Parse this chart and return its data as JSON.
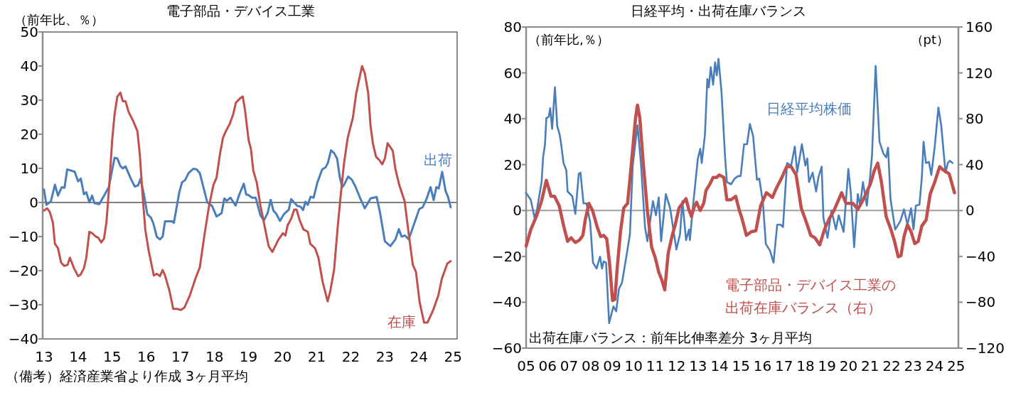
{
  "chart_data": [
    {
      "type": "line",
      "title": "電子部品・デバイス工業",
      "ylabel": "（前年比、％）",
      "xlim": [
        12.96,
        25.12
      ],
      "xticks": [
        13,
        14,
        15,
        16,
        17,
        18,
        19,
        20,
        21,
        22,
        23,
        24,
        25
      ],
      "ylim": [
        -40,
        50
      ],
      "yticks": [
        -40,
        -30,
        -20,
        -10,
        0,
        10,
        20,
        30,
        40,
        50
      ],
      "grid": false,
      "legend": false,
      "marker": "none",
      "line_style": "solid",
      "ref_lines": [
        {
          "axis": "y",
          "value": 0,
          "color": "#808080"
        }
      ],
      "annotations": [
        "（備考）経済産業省より作成 3ヶ月平均"
      ],
      "series": [
        {
          "name": "出荷",
          "color": "#4a7ebb",
          "x": [
            13.0,
            13.07,
            13.2,
            13.32,
            13.41,
            13.52,
            13.6,
            13.68,
            13.9,
            14.0,
            14.08,
            14.17,
            14.24,
            14.33,
            14.41,
            14.48,
            14.62,
            14.76,
            14.9,
            15.07,
            15.15,
            15.24,
            15.31,
            15.39,
            15.55,
            15.66,
            15.76,
            15.83,
            15.93,
            16.03,
            16.14,
            16.21,
            16.31,
            16.4,
            16.48,
            16.55,
            16.76,
            16.81,
            16.97,
            17.05,
            17.14,
            17.24,
            17.38,
            17.48,
            17.57,
            17.79,
            17.93,
            18.06,
            18.21,
            18.29,
            18.36,
            18.47,
            18.62,
            18.72,
            18.86,
            18.93,
            19.01,
            19.1,
            19.21,
            19.35,
            19.45,
            19.56,
            19.65,
            19.73,
            19.82,
            19.92,
            20.04,
            20.18,
            20.25,
            20.43,
            20.52,
            20.6,
            20.67,
            20.74,
            20.82,
            20.91,
            21.02,
            21.16,
            21.26,
            21.33,
            21.42,
            21.51,
            21.6,
            21.68,
            21.75,
            21.82,
            21.92,
            22.03,
            22.13,
            22.27,
            22.41,
            22.58,
            22.76,
            22.86,
            23.0,
            23.16,
            23.31,
            23.41,
            23.49,
            23.59,
            23.7,
            23.87,
            24.01,
            24.11,
            24.22,
            24.34,
            24.43,
            24.51,
            24.58,
            24.68,
            24.78,
            24.85,
            24.93
          ],
          "values": [
            3.8,
            -0.7,
            0.3,
            5.2,
            2,
            4.5,
            4.3,
            9.7,
            9,
            6.2,
            7,
            2.4,
            3,
            0,
            2,
            -0.2,
            -0.5,
            2,
            4.5,
            13.1,
            12.9,
            10.7,
            10,
            10.6,
            6.9,
            4.7,
            5,
            6.9,
            2.4,
            -3.4,
            -4.5,
            -6.2,
            -10.1,
            -10.8,
            -10,
            -5.5,
            -5.5,
            -6,
            3.1,
            5.9,
            6.6,
            8.6,
            9.9,
            9.7,
            8.6,
            0,
            -1,
            -4.1,
            -3.1,
            1.2,
            0.5,
            1.4,
            -0.9,
            2.1,
            5.5,
            2.4,
            2.1,
            1.4,
            1.4,
            -3.8,
            -5.3,
            -3.1,
            0.8,
            -2.4,
            -3.4,
            -5.4,
            -3.4,
            -2.1,
            1,
            -1,
            -1.2,
            -2.2,
            0.2,
            -0.7,
            1.7,
            1.4,
            5.9,
            9.7,
            10.3,
            11.7,
            15.3,
            14.5,
            12.8,
            7.2,
            4.5,
            5.5,
            7.6,
            6.7,
            4.8,
            1.4,
            -1.7,
            1.2,
            1.6,
            -3.1,
            -11.4,
            -12.8,
            -10.8,
            -7.8,
            -10,
            -9.7,
            -10.8,
            -5.9,
            -1.9,
            -1.4,
            1,
            4.5,
            0.7,
            4.5,
            4.1,
            9,
            3.4,
            1.7,
            -1.4
          ]
        },
        {
          "name": "在庫",
          "color": "#c0504d",
          "x": [
            13.0,
            13.09,
            13.17,
            13.26,
            13.32,
            13.41,
            13.5,
            13.59,
            13.69,
            13.76,
            13.88,
            14.0,
            14.07,
            14.17,
            14.24,
            14.33,
            14.41,
            14.52,
            14.59,
            14.68,
            14.76,
            14.83,
            14.91,
            15.0,
            15.07,
            15.15,
            15.24,
            15.31,
            15.39,
            15.48,
            15.62,
            15.74,
            15.81,
            15.9,
            15.97,
            16.07,
            16.22,
            16.31,
            16.4,
            16.48,
            16.55,
            16.68,
            16.79,
            16.9,
            17.02,
            17.12,
            17.28,
            17.45,
            17.57,
            17.71,
            17.83,
            17.97,
            18.06,
            18.16,
            18.25,
            18.34,
            18.45,
            18.55,
            18.63,
            18.77,
            18.83,
            18.9,
            19.0,
            19.07,
            19.14,
            19.24,
            19.35,
            19.49,
            19.59,
            19.7,
            19.87,
            20.01,
            20.08,
            20.15,
            20.25,
            20.34,
            20.41,
            20.5,
            20.61,
            20.74,
            20.81,
            20.95,
            21.05,
            21.17,
            21.32,
            21.4,
            21.51,
            21.61,
            21.7,
            21.8,
            21.91,
            22.06,
            22.16,
            22.33,
            22.41,
            22.51,
            22.58,
            22.65,
            22.74,
            22.84,
            22.92,
            23.0,
            23.08,
            23.23,
            23.31,
            23.42,
            23.58,
            23.7,
            23.82,
            23.91,
            24.02,
            24.15,
            24.25,
            24.41,
            24.57,
            24.67,
            24.83,
            24.93
          ],
          "values": [
            -2.4,
            -1.7,
            -2.8,
            -5.9,
            -12.1,
            -13.4,
            -17.6,
            -18.6,
            -18.3,
            -16.2,
            -19.3,
            -21.6,
            -21.2,
            -19.3,
            -16.2,
            -8.6,
            -9,
            -10,
            -10.3,
            -11.7,
            -10.6,
            -5.9,
            4.5,
            18.3,
            25.9,
            31,
            32.2,
            29.7,
            29.7,
            26.6,
            23.8,
            20.9,
            14.1,
            1,
            -7.9,
            -14.1,
            -21.4,
            -20.9,
            -21.6,
            -19.8,
            -21.4,
            -25.9,
            -31.2,
            -31.2,
            -31.5,
            -30.8,
            -27.2,
            -22.1,
            -19,
            -9.3,
            -1.7,
            5.2,
            7.2,
            14.1,
            19,
            21,
            23.1,
            25.9,
            29.3,
            30.7,
            31.1,
            26.8,
            18.4,
            15.7,
            9.3,
            5.9,
            -1,
            -7.9,
            -12.8,
            -14.5,
            -11,
            -9,
            -9.7,
            -6.6,
            -4.8,
            -2.1,
            -2.1,
            -5.2,
            -7.9,
            -8.6,
            -12.1,
            -13.4,
            -16.2,
            -23.1,
            -29,
            -25.9,
            -19.7,
            -7.9,
            1.7,
            11.4,
            19,
            24.8,
            32.1,
            40,
            37.9,
            32.1,
            22.4,
            17.2,
            13.4,
            12.4,
            11.2,
            12.9,
            17.4,
            15.2,
            9.7,
            5.2,
            0.3,
            -9.3,
            -18.3,
            -20.3,
            -29.3,
            -35.2,
            -35.2,
            -31.7,
            -27.2,
            -22.4,
            -17.9,
            -17.2
          ]
        }
      ]
    },
    {
      "type": "line",
      "title": "日経平均・出荷在庫バランス",
      "ylabel": "（前年比,％）",
      "y2label": "（pt）",
      "xlim": [
        5,
        25.11
      ],
      "xticks": [
        {
          "value": 5,
          "label": "05"
        },
        {
          "value": 6,
          "label": "06"
        },
        {
          "value": 7,
          "label": "07"
        },
        {
          "value": 8,
          "label": "08"
        },
        {
          "value": 9,
          "label": "09"
        },
        10,
        11,
        12,
        13,
        14,
        15,
        16,
        17,
        18,
        19,
        20,
        21,
        22,
        23,
        24,
        25
      ],
      "ylim": [
        -60,
        80
      ],
      "yticks": [
        -60,
        -40,
        -20,
        0,
        20,
        40,
        60,
        80
      ],
      "y2lim": [
        -120,
        160
      ],
      "y2ticks": [
        -120,
        -80,
        -40,
        0,
        40,
        80,
        120,
        160
      ],
      "grid": false,
      "legend": false,
      "marker": "none",
      "line_style": "solid",
      "ref_lines": [
        {
          "axis": "y",
          "value": 0,
          "color": "#a0a0a0"
        }
      ],
      "annotations": [
        "出荷在庫バランス：前年比伸率差分 3ヶ月平均"
      ],
      "series": [
        {
          "name": "日経平均株価",
          "color": "#4a7ebb",
          "x": [
            5.0,
            5.22,
            5.39,
            5.5,
            5.61,
            5.72,
            5.79,
            5.88,
            5.94,
            6.05,
            6.12,
            6.21,
            6.34,
            6.45,
            6.56,
            6.63,
            6.74,
            6.87,
            6.93,
            7.15,
            7.29,
            7.45,
            7.53,
            7.67,
            7.81,
            7.98,
            8.11,
            8.28,
            8.44,
            8.53,
            8.61,
            8.72,
            8.86,
            9.06,
            9.19,
            9.32,
            9.46,
            9.68,
            9.83,
            9.96,
            10.18,
            10.34,
            10.53,
            10.64,
            10.9,
            11.04,
            11.17,
            11.28,
            11.5,
            11.7,
            11.85,
            11.99,
            12.16,
            12.27,
            12.44,
            12.58,
            12.62,
            12.77,
            12.99,
            13.1,
            13.17,
            13.32,
            13.43,
            13.5,
            13.59,
            13.7,
            13.79,
            13.87,
            13.95,
            14.09,
            14.26,
            14.34,
            14.53,
            14.7,
            14.86,
            14.98,
            15.14,
            15.28,
            15.41,
            15.56,
            15.74,
            15.85,
            16.02,
            16.15,
            16.35,
            16.51,
            16.68,
            16.84,
            16.95,
            17.14,
            17.33,
            17.5,
            17.61,
            17.83,
            17.99,
            18.08,
            18.16,
            18.33,
            18.49,
            18.6,
            18.75,
            18.83,
            19.02,
            19.21,
            19.41,
            19.54,
            19.77,
            19.99,
            20.1,
            20.26,
            20.43,
            20.54,
            20.67,
            20.85,
            21.0,
            21.09,
            21.26,
            21.44,
            21.62,
            21.75,
            21.84,
            21.95,
            22.17,
            22.41,
            22.58,
            22.74,
            22.91,
            23.02,
            23.13,
            23.3,
            23.41,
            23.49,
            23.6,
            23.74,
            23.85,
            24.01,
            24.18,
            24.31,
            24.51,
            24.62,
            24.71,
            24.84
          ],
          "values": [
            7.7,
            4.6,
            -3.1,
            0,
            6.2,
            12.4,
            23.2,
            28.9,
            40.3,
            40.8,
            44.6,
            35.6,
            53.7,
            36.7,
            33.1,
            28.9,
            20.7,
            17.6,
            8.3,
            6.2,
            -1.5,
            16,
            16.5,
            3.1,
            3.1,
            -5.2,
            -22.7,
            -25.3,
            -20.1,
            -25.3,
            -22.2,
            -22.7,
            -49.1,
            -41.8,
            -43.9,
            -34.1,
            -31.5,
            -19.1,
            -10.3,
            19.6,
            37.2,
            20.7,
            -7.2,
            -13.4,
            4.1,
            -2.1,
            5.7,
            -13.4,
            7.2,
            1,
            -8.3,
            -17,
            -10.3,
            4.1,
            -12.9,
            -8.3,
            -12.9,
            2.6,
            22.7,
            26.9,
            20.7,
            33.1,
            57.3,
            53.7,
            62.5,
            54.8,
            64.6,
            58.9,
            66.1,
            51.7,
            22.7,
            12.4,
            11.4,
            13.9,
            15,
            15,
            28.9,
            28.9,
            37.7,
            32.5,
            13.4,
            13.9,
            3.1,
            -14.5,
            -17.6,
            -22.7,
            -6.2,
            -6.2,
            -7.2,
            20.7,
            19.6,
            27.9,
            16.5,
            28.9,
            19.6,
            22.7,
            12.4,
            16.5,
            8.3,
            14.5,
            19.1,
            -3.1,
            -11.9,
            0,
            -8.3,
            -2.1,
            -9.3,
            18.1,
            8.3,
            -16,
            7.2,
            2.1,
            12.4,
            2.1,
            14.5,
            23.8,
            63,
            30,
            24.8,
            23.2,
            27.4,
            5.2,
            -8.3,
            -4.6,
            0.5,
            -6.2,
            1,
            -8.3,
            2.1,
            2.6,
            14.5,
            30,
            20.7,
            21.2,
            15.5,
            27.9,
            44.9,
            37.2,
            16.5,
            20.7,
            21.7,
            20.7
          ]
        },
        {
          "name": "電子部品・デバイス工業の出荷在庫バランス（右）",
          "color": "#c0504d",
          "axis": "y2",
          "x": [
            5.0,
            5.22,
            5.5,
            5.72,
            5.94,
            6.16,
            6.32,
            6.54,
            6.76,
            6.93,
            7.09,
            7.29,
            7.48,
            7.64,
            7.75,
            7.92,
            8.09,
            8.31,
            8.47,
            8.61,
            8.75,
            8.88,
            9.02,
            9.13,
            9.24,
            9.39,
            9.54,
            9.72,
            9.85,
            9.98,
            10.09,
            10.18,
            10.29,
            10.45,
            10.64,
            10.84,
            11.01,
            11.17,
            11.3,
            11.45,
            11.61,
            11.81,
            11.94,
            12.11,
            12.27,
            12.44,
            12.55,
            12.69,
            12.82,
            12.93,
            13.1,
            13.26,
            13.37,
            13.54,
            13.7,
            13.87,
            13.98,
            14.2,
            14.34,
            14.53,
            14.75,
            14.92,
            15.03,
            15.25,
            15.47,
            15.69,
            15.91,
            16.18,
            16.46,
            16.62,
            16.9,
            17.12,
            17.33,
            17.56,
            17.8,
            18.06,
            18.24,
            18.44,
            18.66,
            18.88,
            19.1,
            19.32,
            19.68,
            19.88,
            20.21,
            20.43,
            20.62,
            20.81,
            21.03,
            21.2,
            21.36,
            21.53,
            21.75,
            21.97,
            22.14,
            22.31,
            22.44,
            22.58,
            22.74,
            22.91,
            23.08,
            23.24,
            23.41,
            23.61,
            23.8,
            24.01,
            24.24,
            24.42,
            24.68,
            24.93
          ],
          "values": [
            -31,
            -16.5,
            -4.1,
            8.3,
            26.4,
            12.4,
            12.4,
            4.1,
            -14.5,
            -26.9,
            -23.8,
            -27.9,
            -25.8,
            -21.7,
            -8.3,
            6.2,
            0,
            -14.5,
            -22.7,
            -21.7,
            -24.8,
            -45.5,
            -78.5,
            -77.5,
            -49.6,
            -18.6,
            2.1,
            6.2,
            31,
            57.9,
            80.6,
            91.9,
            80.6,
            41.3,
            0,
            -32,
            -41.3,
            -53.7,
            -59.9,
            -69.2,
            -37.2,
            -20.7,
            -12.4,
            2.1,
            6.2,
            10.3,
            2.1,
            -5.2,
            3.1,
            7.2,
            0,
            6.2,
            17.6,
            22.7,
            28.9,
            28.9,
            31,
            28.9,
            9.3,
            9.3,
            12.4,
            0,
            -6.2,
            -21.7,
            -18.6,
            -17.6,
            4.1,
            15.5,
            11.4,
            18.6,
            28.9,
            38.2,
            38.2,
            31,
            2.1,
            -11.4,
            -21.7,
            -23.8,
            -30,
            -16.5,
            -7.2,
            0,
            15.5,
            6.2,
            6.2,
            1,
            7.2,
            14.5,
            23.8,
            35.1,
            41.3,
            24.8,
            -5.2,
            -16.5,
            -26.9,
            -40.3,
            -39.3,
            -22.7,
            -12.4,
            -18.6,
            -28.9,
            -26.9,
            -13.4,
            -8.3,
            14.5,
            24.8,
            38.2,
            35.1,
            32,
            15.5
          ]
        }
      ]
    }
  ]
}
